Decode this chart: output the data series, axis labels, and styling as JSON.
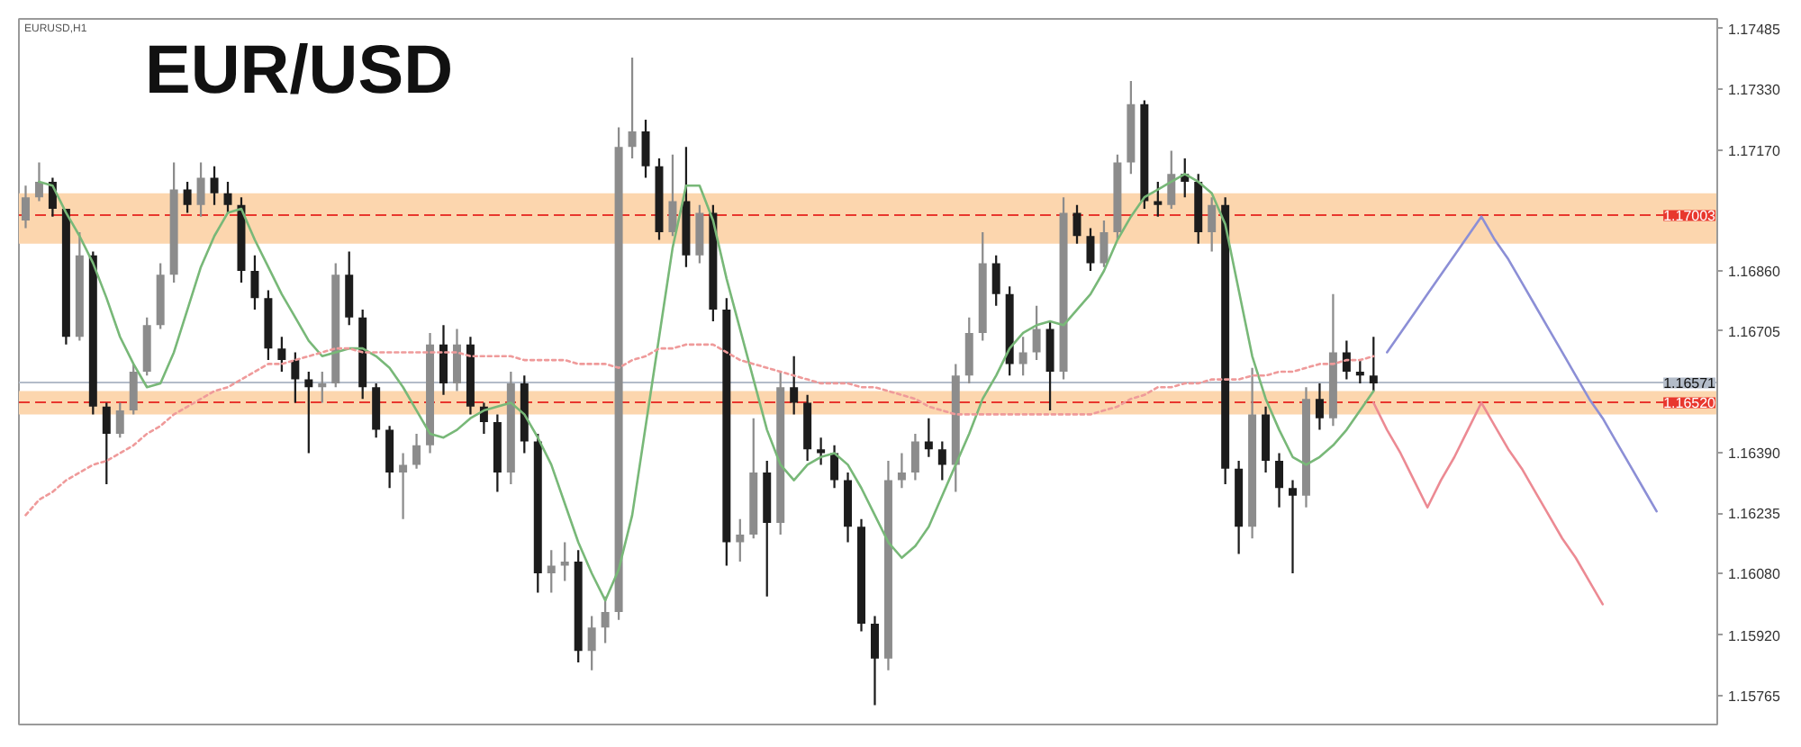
{
  "chart_data": {
    "type": "candlestick",
    "title": "EUR/USD",
    "annotations": [
      "EURUSD,H1"
    ],
    "categories": [
      null,
      null,
      null,
      null,
      null,
      null,
      null,
      null,
      null,
      null,
      null,
      null,
      null,
      null,
      null,
      null,
      null,
      null,
      null,
      null,
      null,
      null,
      null,
      null,
      null,
      null,
      null,
      null,
      null,
      null,
      null,
      null,
      null,
      null,
      null,
      null,
      null,
      null,
      null,
      null,
      null,
      null,
      null,
      null,
      null,
      null,
      null,
      null,
      null,
      null,
      null,
      null,
      null,
      null,
      null,
      null,
      null,
      null,
      null,
      null,
      null,
      null,
      null,
      null,
      null,
      null,
      null,
      null,
      null,
      null,
      null,
      null,
      null,
      null,
      null,
      null,
      null,
      null,
      null,
      null,
      null,
      null,
      null,
      null,
      null,
      null,
      null,
      null,
      null,
      null,
      null,
      null,
      null,
      null,
      null,
      null,
      null,
      null,
      null,
      null,
      null,
      null,
      null,
      null,
      null,
      null,
      null,
      null,
      null,
      null,
      null,
      null,
      null,
      null,
      null,
      null,
      null,
      null,
      null,
      null,
      null,
      null,
      null,
      null,
      null,
      null
    ],
    "ohlc": [
      [
        1.1699,
        1.1708,
        1.1697,
        1.1705
      ],
      [
        1.1705,
        1.1714,
        1.1704,
        1.1709
      ],
      [
        1.1709,
        1.171,
        1.17,
        1.1702
      ],
      [
        1.1702,
        1.1702,
        1.1667,
        1.1669
      ],
      [
        1.1669,
        1.1696,
        1.1668,
        1.169
      ],
      [
        1.169,
        1.1691,
        1.1649,
        1.1651
      ],
      [
        1.1651,
        1.1652,
        1.1631,
        1.1644
      ],
      [
        1.1644,
        1.1652,
        1.1643,
        1.165
      ],
      [
        1.165,
        1.1662,
        1.1649,
        1.166
      ],
      [
        1.166,
        1.1674,
        1.1659,
        1.1672
      ],
      [
        1.1672,
        1.1688,
        1.1671,
        1.1685
      ],
      [
        1.1685,
        1.1714,
        1.1683,
        1.1707
      ],
      [
        1.1707,
        1.1709,
        1.1701,
        1.1703
      ],
      [
        1.1703,
        1.1714,
        1.17,
        1.171
      ],
      [
        1.171,
        1.1713,
        1.1703,
        1.1706
      ],
      [
        1.1706,
        1.1709,
        1.1701,
        1.1703
      ],
      [
        1.1703,
        1.1705,
        1.1683,
        1.1686
      ],
      [
        1.1686,
        1.169,
        1.1676,
        1.1679
      ],
      [
        1.1679,
        1.1681,
        1.1663,
        1.1666
      ],
      [
        1.1666,
        1.1669,
        1.166,
        1.1663
      ],
      [
        1.1663,
        1.1665,
        1.1652,
        1.1658
      ],
      [
        1.1658,
        1.166,
        1.1639,
        1.1656
      ],
      [
        1.1656,
        1.166,
        1.1652,
        1.1657
      ],
      [
        1.1657,
        1.1688,
        1.1656,
        1.1685
      ],
      [
        1.1685,
        1.1691,
        1.1672,
        1.1674
      ],
      [
        1.1674,
        1.1676,
        1.1653,
        1.1656
      ],
      [
        1.1656,
        1.1657,
        1.1643,
        1.1645
      ],
      [
        1.1645,
        1.1646,
        1.163,
        1.1634
      ],
      [
        1.1634,
        1.1639,
        1.1622,
        1.1636
      ],
      [
        1.1636,
        1.1644,
        1.1635,
        1.1641
      ],
      [
        1.1641,
        1.167,
        1.1639,
        1.1667
      ],
      [
        1.1667,
        1.1672,
        1.1654,
        1.1657
      ],
      [
        1.1657,
        1.1671,
        1.1655,
        1.1667
      ],
      [
        1.1667,
        1.1669,
        1.1649,
        1.1651
      ],
      [
        1.1651,
        1.1652,
        1.1644,
        1.1647
      ],
      [
        1.1647,
        1.1649,
        1.1629,
        1.1634
      ],
      [
        1.1634,
        1.166,
        1.1631,
        1.1657
      ],
      [
        1.1657,
        1.1659,
        1.1639,
        1.1642
      ],
      [
        1.1642,
        1.1644,
        1.1603,
        1.1608
      ],
      [
        1.1608,
        1.1614,
        1.1603,
        1.161
      ],
      [
        1.161,
        1.1616,
        1.1606,
        1.1611
      ],
      [
        1.1611,
        1.1614,
        1.1585,
        1.1588
      ],
      [
        1.1588,
        1.1597,
        1.1583,
        1.1594
      ],
      [
        1.1594,
        1.1602,
        1.159,
        1.1598
      ],
      [
        1.1598,
        1.1723,
        1.1596,
        1.1718
      ],
      [
        1.1718,
        1.1741,
        1.1715,
        1.1722
      ],
      [
        1.1722,
        1.1725,
        1.171,
        1.1713
      ],
      [
        1.1713,
        1.1715,
        1.1694,
        1.1696
      ],
      [
        1.1696,
        1.1716,
        1.1695,
        1.1704
      ],
      [
        1.1704,
        1.1718,
        1.1687,
        1.169
      ],
      [
        1.169,
        1.1703,
        1.1688,
        1.1701
      ],
      [
        1.1701,
        1.1703,
        1.1673,
        1.1676
      ],
      [
        1.1676,
        1.1679,
        1.161,
        1.1616
      ],
      [
        1.1616,
        1.1622,
        1.1611,
        1.1618
      ],
      [
        1.1618,
        1.1648,
        1.1617,
        1.1634
      ],
      [
        1.1634,
        1.1637,
        1.1602,
        1.1621
      ],
      [
        1.1621,
        1.166,
        1.1618,
        1.1656
      ],
      [
        1.1656,
        1.1664,
        1.1649,
        1.1652
      ],
      [
        1.1652,
        1.1654,
        1.1637,
        1.164
      ],
      [
        1.164,
        1.1643,
        1.1636,
        1.1639
      ],
      [
        1.1639,
        1.1641,
        1.163,
        1.1632
      ],
      [
        1.1632,
        1.1634,
        1.1616,
        1.162
      ],
      [
        1.162,
        1.1622,
        1.1593,
        1.1595
      ],
      [
        1.1595,
        1.1597,
        1.1574,
        1.1586
      ],
      [
        1.1586,
        1.1637,
        1.1583,
        1.1632
      ],
      [
        1.1632,
        1.1639,
        1.163,
        1.1634
      ],
      [
        1.1634,
        1.1644,
        1.1632,
        1.1642
      ],
      [
        1.1642,
        1.1648,
        1.1638,
        1.164
      ],
      [
        1.164,
        1.1642,
        1.1632,
        1.1636
      ],
      [
        1.1636,
        1.1662,
        1.1629,
        1.1659
      ],
      [
        1.1659,
        1.1674,
        1.1657,
        1.167
      ],
      [
        1.167,
        1.1696,
        1.1668,
        1.1688
      ],
      [
        1.1688,
        1.169,
        1.1677,
        1.168
      ],
      [
        1.168,
        1.1682,
        1.1659,
        1.1662
      ],
      [
        1.1662,
        1.1669,
        1.1659,
        1.1665
      ],
      [
        1.1665,
        1.1677,
        1.1663,
        1.1671
      ],
      [
        1.1671,
        1.1673,
        1.165,
        1.166
      ],
      [
        1.166,
        1.1705,
        1.1658,
        1.1701
      ],
      [
        1.1701,
        1.1703,
        1.1693,
        1.1695
      ],
      [
        1.1695,
        1.1697,
        1.1686,
        1.1688
      ],
      [
        1.1688,
        1.1699,
        1.1687,
        1.1696
      ],
      [
        1.1696,
        1.1716,
        1.1694,
        1.1714
      ],
      [
        1.1714,
        1.1735,
        1.1711,
        1.1729
      ],
      [
        1.1729,
        1.173,
        1.1702,
        1.1704
      ],
      [
        1.1704,
        1.1709,
        1.17,
        1.1703
      ],
      [
        1.1703,
        1.1717,
        1.1702,
        1.1711
      ],
      [
        1.1711,
        1.1715,
        1.1705,
        1.1709
      ],
      [
        1.1709,
        1.1711,
        1.1693,
        1.1696
      ],
      [
        1.1696,
        1.1705,
        1.1691,
        1.1703
      ],
      [
        1.1703,
        1.1705,
        1.1631,
        1.1635
      ],
      [
        1.1635,
        1.1637,
        1.1613,
        1.162
      ],
      [
        1.162,
        1.1661,
        1.1617,
        1.1649
      ],
      [
        1.1649,
        1.1651,
        1.1634,
        1.1637
      ],
      [
        1.1637,
        1.1639,
        1.1625,
        1.163
      ],
      [
        1.163,
        1.1632,
        1.1608,
        1.1628
      ],
      [
        1.1628,
        1.1656,
        1.1625,
        1.1653
      ],
      [
        1.1653,
        1.1657,
        1.1645,
        1.1648
      ],
      [
        1.1648,
        1.168,
        1.1646,
        1.1665
      ],
      [
        1.1665,
        1.1668,
        1.1658,
        1.166
      ],
      [
        1.166,
        1.1663,
        1.1657,
        1.1659
      ],
      [
        1.1659,
        1.1669,
        1.1655,
        1.1657
      ],
      null,
      null,
      null,
      null,
      null,
      null,
      null,
      null,
      null,
      null,
      null,
      null,
      null,
      null,
      null,
      null,
      null,
      null,
      null,
      null,
      null,
      null,
      null,
      null,
      null
    ],
    "colors": [
      "#8c8c8c",
      "#8c8c8c",
      "#1c1c1c",
      "#1c1c1c",
      "#8c8c8c",
      "#1c1c1c",
      "#1c1c1c",
      "#8c8c8c",
      "#8c8c8c",
      "#8c8c8c",
      "#8c8c8c",
      "#8c8c8c",
      "#1c1c1c",
      "#8c8c8c",
      "#1c1c1c",
      "#1c1c1c",
      "#1c1c1c",
      "#1c1c1c",
      "#1c1c1c",
      "#1c1c1c",
      "#1c1c1c",
      "#1c1c1c",
      "#8c8c8c",
      "#8c8c8c",
      "#1c1c1c",
      "#1c1c1c",
      "#1c1c1c",
      "#1c1c1c",
      "#8c8c8c",
      "#8c8c8c",
      "#8c8c8c",
      "#1c1c1c",
      "#8c8c8c",
      "#1c1c1c",
      "#1c1c1c",
      "#1c1c1c",
      "#8c8c8c",
      "#1c1c1c",
      "#1c1c1c",
      "#8c8c8c",
      "#8c8c8c",
      "#1c1c1c",
      "#8c8c8c",
      "#8c8c8c",
      "#8c8c8c",
      "#8c8c8c",
      "#1c1c1c",
      "#1c1c1c",
      "#8c8c8c",
      "#1c1c1c",
      "#8c8c8c",
      "#1c1c1c",
      "#1c1c1c",
      "#8c8c8c",
      "#8c8c8c",
      "#1c1c1c",
      "#8c8c8c",
      "#1c1c1c",
      "#1c1c1c",
      "#1c1c1c",
      "#1c1c1c",
      "#1c1c1c",
      "#1c1c1c",
      "#1c1c1c",
      "#8c8c8c",
      "#8c8c8c",
      "#8c8c8c",
      "#1c1c1c",
      "#1c1c1c",
      "#8c8c8c",
      "#8c8c8c",
      "#8c8c8c",
      "#1c1c1c",
      "#1c1c1c",
      "#8c8c8c",
      "#8c8c8c",
      "#1c1c1c",
      "#8c8c8c",
      "#1c1c1c",
      "#1c1c1c",
      "#8c8c8c",
      "#8c8c8c",
      "#8c8c8c",
      "#1c1c1c",
      "#1c1c1c",
      "#8c8c8c",
      "#1c1c1c",
      "#1c1c1c",
      "#8c8c8c",
      "#1c1c1c",
      "#1c1c1c",
      "#8c8c8c",
      "#1c1c1c",
      "#1c1c1c",
      "#1c1c1c",
      "#8c8c8c",
      "#1c1c1c",
      "#8c8c8c",
      "#1c1c1c",
      "#1c1c1c",
      "#1c1c1c",
      null,
      null,
      null,
      null,
      null,
      null,
      null,
      null,
      null,
      null,
      null,
      null,
      null,
      null,
      null,
      null,
      null,
      null,
      null,
      null,
      null,
      null,
      null,
      null,
      null
    ],
    "series": [
      {
        "type": "line",
        "color": "#78b878",
        "line_style": "solid",
        "values": [
          null,
          1.1709,
          1.1708,
          1.1701,
          1.1695,
          1.1688,
          1.1679,
          1.1669,
          1.1662,
          1.1656,
          1.1657,
          1.1665,
          1.1676,
          1.1687,
          1.1695,
          1.1701,
          1.1702,
          1.1694,
          1.1687,
          1.168,
          1.1674,
          1.1668,
          1.1664,
          1.1665,
          1.1666,
          1.1666,
          1.1664,
          1.1661,
          1.1656,
          1.165,
          1.1644,
          1.1643,
          1.1645,
          1.1648,
          1.165,
          1.1651,
          1.1652,
          1.1649,
          1.1643,
          1.1636,
          1.1626,
          1.1616,
          1.1608,
          1.1601,
          1.1609,
          1.1623,
          1.1646,
          1.1669,
          1.1692,
          1.1708,
          1.1708,
          1.1699,
          1.1684,
          1.1671,
          1.1658,
          1.1645,
          1.1636,
          1.1632,
          1.1636,
          1.1638,
          1.1639,
          1.1636,
          1.163,
          1.1623,
          1.1616,
          1.1612,
          1.1615,
          1.162,
          1.1628,
          1.1636,
          1.1644,
          1.1653,
          1.1659,
          1.1666,
          1.167,
          1.1672,
          1.1673,
          1.1672,
          1.1676,
          1.168,
          1.1686,
          1.1694,
          1.17,
          1.1705,
          1.1707,
          1.1709,
          1.1711,
          1.1709,
          1.1706,
          1.1698,
          1.1681,
          1.1664,
          1.1653,
          1.1645,
          1.1638,
          1.1636,
          1.1638,
          1.1641,
          1.1645,
          1.165,
          1.1655,
          null,
          null,
          null,
          null,
          null,
          null,
          null,
          null,
          null,
          null,
          null,
          null,
          null,
          null,
          null,
          null,
          null,
          null,
          null,
          null,
          null,
          null,
          null,
          null,
          null
        ]
      },
      {
        "type": "line",
        "color": "#ef9a9a",
        "line_style": "dotted",
        "values": [
          1.1623,
          1.1627,
          1.1629,
          1.1632,
          1.1634,
          1.1636,
          1.1637,
          1.1639,
          1.1641,
          1.1644,
          1.1646,
          1.1649,
          1.1651,
          1.1653,
          1.1655,
          1.1656,
          1.1658,
          1.166,
          1.1662,
          1.1662,
          1.1663,
          1.1664,
          1.1665,
          1.1666,
          1.1666,
          1.1665,
          1.1665,
          1.1665,
          1.1665,
          1.1665,
          1.1665,
          1.1665,
          1.1665,
          1.1664,
          1.1664,
          1.1664,
          1.1664,
          1.1663,
          1.1663,
          1.1663,
          1.1663,
          1.1662,
          1.1662,
          1.1662,
          1.1661,
          1.1663,
          1.1664,
          1.1666,
          1.1666,
          1.1667,
          1.1667,
          1.1667,
          1.1665,
          1.1663,
          1.1662,
          1.1661,
          1.166,
          1.1659,
          1.1658,
          1.1657,
          1.1657,
          1.1657,
          1.1656,
          1.1656,
          1.1655,
          1.1654,
          1.1653,
          1.1651,
          1.165,
          1.1649,
          1.1649,
          1.1649,
          1.1649,
          1.1649,
          1.1649,
          1.1649,
          1.1649,
          1.1649,
          1.1649,
          1.1649,
          1.165,
          1.1651,
          1.1653,
          1.1654,
          1.1656,
          1.1656,
          1.1657,
          1.1657,
          1.1658,
          1.1658,
          1.1658,
          1.1659,
          1.1659,
          1.166,
          1.166,
          1.1661,
          1.1662,
          1.1662,
          1.1663,
          1.1663,
          1.1664,
          null,
          null,
          null,
          null,
          null,
          null,
          null,
          null,
          null,
          null,
          null,
          null,
          null,
          null,
          null,
          null,
          null,
          null,
          null,
          null,
          null,
          null,
          null,
          null,
          null
        ]
      },
      {
        "type": "line",
        "color": "#8c8fd6",
        "values": [
          null,
          null,
          null,
          null,
          null,
          null,
          null,
          null,
          null,
          null,
          null,
          null,
          null,
          null,
          null,
          null,
          null,
          null,
          null,
          null,
          null,
          null,
          null,
          null,
          null,
          null,
          null,
          null,
          null,
          null,
          null,
          null,
          null,
          null,
          null,
          null,
          null,
          null,
          null,
          null,
          null,
          null,
          null,
          null,
          null,
          null,
          null,
          null,
          null,
          null,
          null,
          null,
          null,
          null,
          null,
          null,
          null,
          null,
          null,
          null,
          null,
          null,
          null,
          null,
          null,
          null,
          null,
          null,
          null,
          null,
          null,
          null,
          null,
          null,
          null,
          null,
          null,
          null,
          null,
          null,
          null,
          null,
          null,
          null,
          null,
          null,
          null,
          null,
          null,
          null,
          null,
          null,
          null,
          null,
          null,
          null,
          null,
          null,
          null,
          null,
          null,
          1.1665,
          1.167,
          1.1675,
          1.168,
          1.1685,
          1.169,
          1.1695,
          1.17,
          1.1694,
          1.1689,
          1.1683,
          1.1677,
          1.1671,
          1.1665,
          1.1659,
          1.1653,
          1.1648,
          1.1642,
          1.1636,
          1.163,
          1.1624,
          null,
          null,
          null,
          null
        ]
      },
      {
        "type": "line",
        "color": "#ec8a93",
        "values": [
          null,
          null,
          null,
          null,
          null,
          null,
          null,
          null,
          null,
          null,
          null,
          null,
          null,
          null,
          null,
          null,
          null,
          null,
          null,
          null,
          null,
          null,
          null,
          null,
          null,
          null,
          null,
          null,
          null,
          null,
          null,
          null,
          null,
          null,
          null,
          null,
          null,
          null,
          null,
          null,
          null,
          null,
          null,
          null,
          null,
          null,
          null,
          null,
          null,
          null,
          null,
          null,
          null,
          null,
          null,
          null,
          null,
          null,
          null,
          null,
          null,
          null,
          null,
          null,
          null,
          null,
          null,
          null,
          null,
          null,
          null,
          null,
          null,
          null,
          null,
          null,
          null,
          null,
          null,
          null,
          null,
          null,
          null,
          null,
          null,
          null,
          null,
          null,
          null,
          null,
          null,
          null,
          null,
          null,
          null,
          null,
          null,
          null,
          null,
          null,
          1.1652,
          1.1645,
          1.1639,
          1.1632,
          1.1625,
          1.1632,
          1.1638,
          1.1645,
          1.1652,
          1.1646,
          1.164,
          1.1635,
          1.1629,
          1.1623,
          1.1617,
          1.1612,
          1.1606,
          1.16,
          null,
          null,
          null,
          null,
          null,
          null,
          null,
          null
        ]
      }
    ],
    "bands": [
      {
        "axis": "y",
        "from": 1.1693,
        "to": 1.1706,
        "color": "#fcd6ae"
      },
      {
        "axis": "y",
        "from": 1.1649,
        "to": 1.1655,
        "color": "#fcd6ae"
      }
    ],
    "ylim": [
      1.1569,
      1.1751
    ],
    "yticks": [
      1.17485,
      {
        "value": 1.1733,
        "label": "1.17330"
      },
      {
        "value": 1.1717,
        "label": "1.17170"
      },
      {
        "value": 1.1686,
        "label": "1.16860"
      },
      1.16705,
      {
        "value": 1.1639,
        "label": "1.16390"
      },
      1.16235,
      {
        "value": 1.1608,
        "label": "1.16080"
      },
      {
        "value": 1.1592,
        "label": "1.15920"
      },
      1.15765
    ],
    "tick_labels": "y",
    "ref_lines": [
      {
        "axis": "y",
        "value": 1.17003,
        "label": "1.17003",
        "color": "#e8372e",
        "line_style": "dashed"
      },
      {
        "axis": "y",
        "value": 1.16571,
        "label": "1.16571",
        "color": "#b3bcc9",
        "line_style": "solid"
      },
      {
        "axis": "y",
        "value": 1.1652,
        "label": "1.16520",
        "color": "#e8372e",
        "line_style": "dashed"
      }
    ]
  }
}
